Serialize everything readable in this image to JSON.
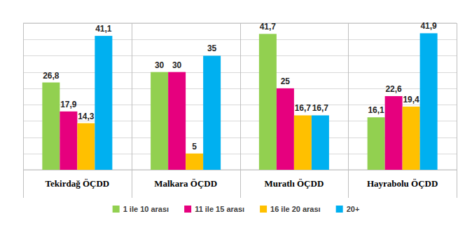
{
  "chart_data": {
    "type": "bar",
    "categories": [
      "Tekirdağ ÖÇDD",
      "Malkara ÖÇDD",
      "Muratlı ÖÇDD",
      "Hayrabolu ÖÇDD"
    ],
    "series": [
      {
        "name": "1 ile 10 arası",
        "color": "#92d050",
        "values": [
          26.8,
          30,
          41.7,
          16.1
        ],
        "value_labels": [
          "26,8",
          "30",
          "41,7",
          "16,1"
        ]
      },
      {
        "name": "11 ile 15 arası",
        "color": "#e6007e",
        "values": [
          17.9,
          30,
          25,
          22.6
        ],
        "value_labels": [
          "17,9",
          "30",
          "25",
          "22,6"
        ]
      },
      {
        "name": "16 ile 20 arası",
        "color": "#ffc000",
        "values": [
          14.3,
          5,
          16.7,
          19.4
        ],
        "value_labels": [
          "14,3",
          "5",
          "16,7",
          "19,4"
        ]
      },
      {
        "name": "20+",
        "color": "#00b0f0",
        "values": [
          41.1,
          35,
          16.7,
          41.9
        ],
        "value_labels": [
          "41,1",
          "35",
          "16,7",
          "41,9"
        ]
      }
    ],
    "ylim": [
      0,
      45
    ],
    "yticks": [
      0,
      5,
      10,
      15,
      20,
      25,
      30,
      35,
      40,
      45
    ],
    "grid": true,
    "data_labels": true,
    "tick_labels": "x",
    "legend": "bottom"
  }
}
